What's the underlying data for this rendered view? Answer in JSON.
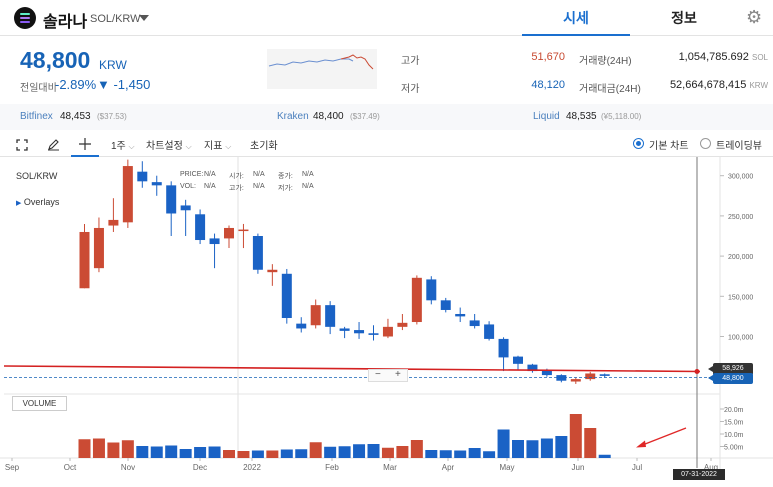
{
  "header": {
    "coin_name": "솔라나",
    "pair": "SOL/KRW",
    "tab_quote": "시세",
    "tab_info": "정보",
    "logo_icon": "solana-logo",
    "settings_icon": "gear-icon"
  },
  "price": {
    "current": "48,800",
    "unit": "KRW",
    "change_label": "전일대비",
    "change_rate": "-2.89%",
    "change_amount": "▼ -1,450",
    "high_label": "고가",
    "high_value": "51,670",
    "low_label": "저가",
    "low_value": "48,120",
    "volume_label": "거래량(24H)",
    "volume_value": "1,054,785.692",
    "volume_unit": "SOL",
    "amount_label": "거래대금(24H)",
    "amount_value": "52,664,678,415",
    "amount_unit": "KRW"
  },
  "exchanges": [
    {
      "name": "Bitfinex",
      "price": "48,453",
      "sub": "($37.53)"
    },
    {
      "name": "Kraken",
      "price": "48,400",
      "sub": "($37.49)"
    },
    {
      "name": "Liquid",
      "price": "48,535",
      "sub": "(¥5,118.00)"
    }
  ],
  "toolbar": {
    "interval": "1주",
    "chart_settings": "차트설정",
    "indicators": "지표",
    "reset": "초기화",
    "radio_basic": "기본 차트",
    "radio_tradingview": "트레이딩뷰",
    "caret": "⌵"
  },
  "chart": {
    "symbol": "SOL/KRW",
    "overlays": "Overlays",
    "ohlc_labels": {
      "price": "PRICE:",
      "open": "시가:",
      "high": "고가:",
      "close": "종가:",
      "low": "저가:",
      "vol": "VOL:",
      "na": "N/A"
    },
    "volume_button": "VOLUME",
    "zoom_minus": "−",
    "zoom_plus": "+",
    "price_tag_line": "58,926",
    "price_tag_current": "48,800",
    "crosshair_date": "07-31-2022"
  },
  "chart_data": {
    "type": "candlestick",
    "y_ticks": [
      "300,000",
      "250,000",
      "200,000",
      "150,000",
      "100,000"
    ],
    "vol_ticks": [
      "20.0m",
      "15.0m",
      "10.0m",
      "5.00m"
    ],
    "x_labels": [
      "Sep",
      "Oct",
      "Nov",
      "Dec",
      "2022",
      "Feb",
      "Mar",
      "Apr",
      "May",
      "Jun",
      "Jul",
      "Aug"
    ],
    "horizontal_line": 58926,
    "last_price": 48800,
    "candles": [
      [
        160000,
        230000,
        160000,
        240000,
        7.5
      ],
      [
        185000,
        235000,
        180000,
        248000,
        7.8
      ],
      [
        238000,
        245000,
        230000,
        272000,
        6.2
      ],
      [
        242000,
        312000,
        235000,
        320000,
        7.1
      ],
      [
        305000,
        293000,
        285000,
        318000,
        4.8
      ],
      [
        292000,
        288000,
        275000,
        300000,
        4.6
      ],
      [
        288000,
        253000,
        225000,
        293000,
        5.0
      ],
      [
        263000,
        257000,
        225000,
        270000,
        3.6
      ],
      [
        252000,
        220000,
        215000,
        258000,
        4.4
      ],
      [
        222000,
        215000,
        185000,
        228000,
        4.6
      ],
      [
        222000,
        235000,
        210000,
        238000,
        3.2
      ],
      [
        232000,
        233000,
        210000,
        240000,
        2.8
      ],
      [
        225000,
        183000,
        178000,
        228000,
        3.0
      ],
      [
        180000,
        183000,
        163000,
        190000,
        3.0
      ],
      [
        178000,
        123000,
        116000,
        184000,
        3.4
      ],
      [
        116000,
        110000,
        105000,
        124000,
        3.5
      ],
      [
        114000,
        139000,
        110000,
        146000,
        6.3
      ],
      [
        139000,
        112000,
        103000,
        144000,
        4.5
      ],
      [
        110000,
        107000,
        98000,
        112000,
        4.7
      ],
      [
        108000,
        104000,
        97000,
        118000,
        5.5
      ],
      [
        104000,
        102000,
        95000,
        114000,
        5.6
      ],
      [
        100000,
        112000,
        98000,
        122000,
        4.1
      ],
      [
        112000,
        117000,
        108000,
        128000,
        4.8
      ],
      [
        118000,
        173000,
        115000,
        176000,
        7.2
      ],
      [
        171000,
        145000,
        140000,
        175000,
        3.2
      ],
      [
        145000,
        133000,
        130000,
        148000,
        3.1
      ],
      [
        128000,
        125000,
        118000,
        136000,
        3.0
      ],
      [
        120000,
        113000,
        110000,
        128000,
        4.0
      ],
      [
        115000,
        97000,
        95000,
        119000,
        2.7
      ],
      [
        97000,
        74000,
        57000,
        99000,
        11.4
      ],
      [
        75000,
        66000,
        58000,
        76000,
        7.2
      ],
      [
        65000,
        57000,
        55000,
        66000,
        7.1
      ],
      [
        58000,
        52000,
        50000,
        60000,
        7.8
      ],
      [
        52000,
        45000,
        43000,
        53000,
        8.8
      ],
      [
        44000,
        47000,
        41000,
        49000,
        17.6
      ],
      [
        47000,
        54000,
        45000,
        56000,
        12.0
      ],
      [
        53000,
        51000,
        49000,
        54000,
        1.3
      ]
    ],
    "colors": {
      "up": "#cb4b34",
      "down": "#1a62c5",
      "hline": "#d42121",
      "last": "#1763b6"
    }
  }
}
